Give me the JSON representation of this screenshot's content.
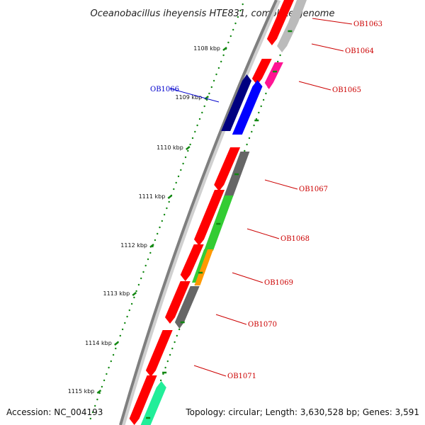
{
  "title": "Oceanobacillus iheyensis HTE831, complete genome",
  "footer": {
    "accession": "Accession: NC_004193",
    "summary": "Topology: circular; Length: 3,630,528 bp; Genes: 3,591"
  },
  "colors": {
    "backbone": "#7f7f7f",
    "backbone_shadow": "#d0d0d0",
    "tick": "#118811",
    "forward_label": "#cc0000",
    "reverse_label": "#0000cc"
  },
  "ticks": [
    {
      "label": "1108 kbp"
    },
    {
      "label": "1109 kbp"
    },
    {
      "label": "1110 kbp"
    },
    {
      "label": "1111 kbp"
    },
    {
      "label": "1112 kbp"
    },
    {
      "label": "1113 kbp"
    },
    {
      "label": "1114 kbp"
    },
    {
      "label": "1115 kbp"
    }
  ],
  "gene_labels": [
    {
      "text": "OB1063",
      "strand": "forward"
    },
    {
      "text": "OB1064",
      "strand": "forward"
    },
    {
      "text": "OB1065",
      "strand": "forward"
    },
    {
      "text": "OB1066",
      "strand": "reverse"
    },
    {
      "text": "OB1067",
      "strand": "forward"
    },
    {
      "text": "OB1068",
      "strand": "forward"
    },
    {
      "text": "OB1069",
      "strand": "forward"
    },
    {
      "text": "OB1070",
      "strand": "forward"
    },
    {
      "text": "OB1071",
      "strand": "forward"
    }
  ],
  "feature_colors": {
    "cds": "#ff0000",
    "reverse_outer": "#000080",
    "reverse_inner": "#0000ff",
    "grey_dark": "#666666",
    "grey_light": "#bbbbbb",
    "magenta": "#ff1493",
    "green": "#33cc33",
    "orange": "#ff9900",
    "teal": "#22ee99"
  }
}
